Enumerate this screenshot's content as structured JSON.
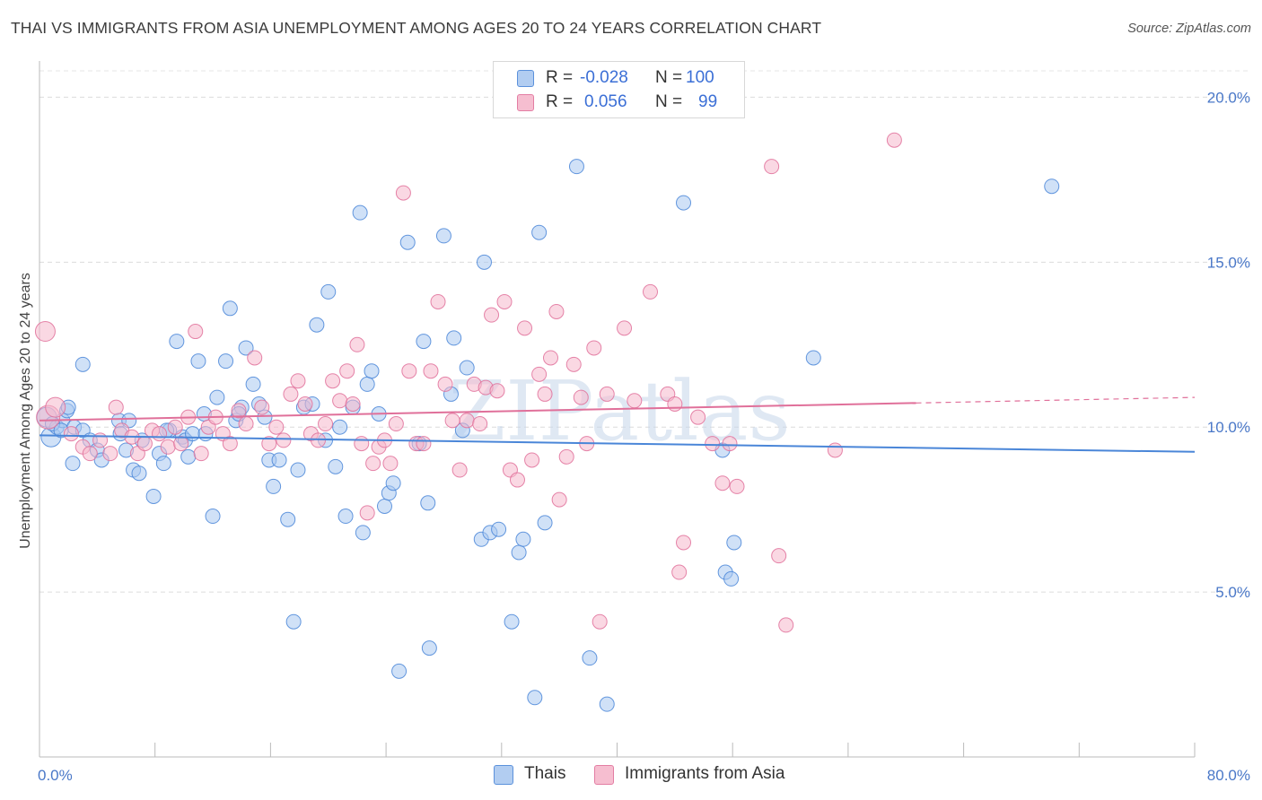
{
  "header": {
    "title": "THAI VS IMMIGRANTS FROM ASIA UNEMPLOYMENT AMONG AGES 20 TO 24 YEARS CORRELATION CHART",
    "source": "Source: ZipAtlas.com"
  },
  "watermark": "ZIPatlas",
  "legend": {
    "rows": [
      {
        "r_label": "R =",
        "r_value": "-0.028",
        "n_label": "N =",
        "n_value": "100",
        "color": "#aac8f0"
      },
      {
        "r_label": "R =",
        "r_value": "0.056",
        "n_label": "N =",
        "n_value": "99",
        "color": "#f6b8cc"
      }
    ],
    "bottom": [
      {
        "label": "Thais",
        "color": "#aac8f0"
      },
      {
        "label": "Immigrants from Asia",
        "color": "#f6b8cc"
      }
    ]
  },
  "chart_data": {
    "type": "scatter",
    "ylabel": "Unemployment Among Ages 20 to 24 years",
    "xlim": [
      0,
      80
    ],
    "ylim": [
      0,
      20.8
    ],
    "x_tick_labels": [
      "0.0%",
      "80.0%"
    ],
    "y_ticks": [
      {
        "value": 5,
        "label": "5.0%"
      },
      {
        "value": 10,
        "label": "10.0%"
      },
      {
        "value": 15,
        "label": "15.0%"
      },
      {
        "value": 20,
        "label": "20.0%"
      }
    ],
    "grid": true,
    "legend_placement": "top-center",
    "series": [
      {
        "name": "Thais",
        "color": "#4a86d8",
        "fill": "#aac8f0",
        "trend": {
          "x0": 0,
          "y0": 9.75,
          "x1": 80,
          "y1": 9.25,
          "dashed_from": null
        },
        "points": [
          [
            0.5,
            10.3,
            2
          ],
          [
            0.8,
            9.7,
            2
          ],
          [
            1.2,
            10.0,
            1
          ],
          [
            1.6,
            10.2,
            1
          ],
          [
            1.9,
            10.5,
            1
          ],
          [
            2.4,
            10.0,
            1
          ],
          [
            3.0,
            9.9,
            1
          ],
          [
            2.3,
            8.9,
            1
          ],
          [
            3.0,
            11.9,
            1
          ],
          [
            3.5,
            9.6,
            1
          ],
          [
            4.0,
            9.3,
            1
          ],
          [
            4.3,
            9.0,
            1
          ],
          [
            5.5,
            10.2,
            1
          ],
          [
            5.6,
            9.8,
            1
          ],
          [
            6.0,
            9.3,
            1
          ],
          [
            6.5,
            8.7,
            1
          ],
          [
            6.9,
            8.6,
            1
          ],
          [
            7.1,
            9.6,
            1
          ],
          [
            7.9,
            7.9,
            1
          ],
          [
            8.3,
            9.2,
            1
          ],
          [
            8.6,
            8.9,
            1
          ],
          [
            9.0,
            9.9,
            1
          ],
          [
            9.5,
            12.6,
            1
          ],
          [
            9.9,
            9.7,
            1
          ],
          [
            10.1,
            9.6,
            1
          ],
          [
            10.3,
            9.1,
            1
          ],
          [
            10.6,
            9.8,
            1
          ],
          [
            11.0,
            12.0,
            1
          ],
          [
            11.4,
            10.4,
            1
          ],
          [
            12.0,
            7.3,
            1
          ],
          [
            12.3,
            10.9,
            1
          ],
          [
            12.9,
            12.0,
            1
          ],
          [
            13.2,
            13.6,
            1
          ],
          [
            13.6,
            10.2,
            1
          ],
          [
            14.0,
            10.6,
            1
          ],
          [
            14.3,
            12.4,
            1
          ],
          [
            14.8,
            11.3,
            1
          ],
          [
            15.2,
            10.7,
            1
          ],
          [
            15.6,
            10.3,
            1
          ],
          [
            15.9,
            9.0,
            1
          ],
          [
            16.2,
            8.2,
            1
          ],
          [
            16.6,
            9.0,
            1
          ],
          [
            17.2,
            7.2,
            1
          ],
          [
            17.6,
            4.1,
            1
          ],
          [
            17.9,
            8.7,
            1
          ],
          [
            18.3,
            10.6,
            1
          ],
          [
            18.9,
            10.7,
            1
          ],
          [
            19.2,
            13.1,
            1
          ],
          [
            19.8,
            9.6,
            1
          ],
          [
            20.0,
            14.1,
            1
          ],
          [
            20.5,
            8.8,
            1
          ],
          [
            20.8,
            10.0,
            1
          ],
          [
            21.2,
            7.3,
            1
          ],
          [
            21.7,
            10.6,
            1
          ],
          [
            22.2,
            16.5,
            1
          ],
          [
            22.4,
            6.8,
            1
          ],
          [
            22.7,
            11.3,
            1
          ],
          [
            23.0,
            11.7,
            1
          ],
          [
            23.5,
            10.4,
            1
          ],
          [
            23.9,
            7.6,
            1
          ],
          [
            24.2,
            8.0,
            1
          ],
          [
            24.5,
            8.3,
            1
          ],
          [
            24.9,
            2.6,
            1
          ],
          [
            25.5,
            15.6,
            1
          ],
          [
            26.3,
            9.5,
            1
          ],
          [
            26.6,
            12.6,
            1
          ],
          [
            26.9,
            7.7,
            1
          ],
          [
            27.0,
            3.3,
            1
          ],
          [
            28.0,
            15.8,
            1
          ],
          [
            28.5,
            11.0,
            1
          ],
          [
            28.7,
            12.7,
            1
          ],
          [
            29.3,
            9.9,
            1
          ],
          [
            29.6,
            11.8,
            1
          ],
          [
            30.6,
            6.6,
            1
          ],
          [
            30.8,
            15.0,
            1
          ],
          [
            31.2,
            6.8,
            1
          ],
          [
            31.8,
            6.9,
            1
          ],
          [
            32.7,
            4.1,
            1
          ],
          [
            33.2,
            6.2,
            1
          ],
          [
            33.5,
            6.6,
            1
          ],
          [
            34.3,
            1.8,
            1
          ],
          [
            34.6,
            15.9,
            1
          ],
          [
            35.0,
            7.1,
            1
          ],
          [
            37.2,
            17.9,
            1
          ],
          [
            38.1,
            3.0,
            1
          ],
          [
            39.3,
            1.6,
            1
          ],
          [
            44.6,
            16.8,
            1
          ],
          [
            47.3,
            9.3,
            1
          ],
          [
            47.5,
            5.6,
            1
          ],
          [
            47.9,
            5.4,
            1
          ],
          [
            48.1,
            6.5,
            1
          ],
          [
            53.6,
            12.1,
            1
          ],
          [
            70.1,
            17.3,
            1
          ],
          [
            0.9,
            10.1,
            1
          ],
          [
            1.5,
            9.9,
            1
          ],
          [
            2.0,
            10.6,
            1
          ],
          [
            6.2,
            10.2,
            1
          ],
          [
            8.8,
            9.9,
            1
          ],
          [
            11.5,
            9.8,
            1
          ],
          [
            13.8,
            10.4,
            1
          ]
        ]
      },
      {
        "name": "Immigrants from Asia",
        "color": "#e0709a",
        "fill": "#f6b8cc",
        "trend": {
          "x0": 0,
          "y0": 10.2,
          "x1": 80,
          "y1": 10.9,
          "dashed_from": 60.7
        },
        "points": [
          [
            0.4,
            12.9,
            2
          ],
          [
            0.6,
            10.3,
            3
          ],
          [
            1.1,
            10.6,
            2
          ],
          [
            2.2,
            9.8,
            1
          ],
          [
            3.0,
            9.4,
            1
          ],
          [
            3.5,
            9.2,
            1
          ],
          [
            4.2,
            9.6,
            1
          ],
          [
            4.9,
            9.2,
            1
          ],
          [
            5.3,
            10.6,
            1
          ],
          [
            5.7,
            9.9,
            1
          ],
          [
            6.4,
            9.7,
            1
          ],
          [
            6.8,
            9.2,
            1
          ],
          [
            7.3,
            9.5,
            1
          ],
          [
            7.8,
            9.9,
            1
          ],
          [
            8.3,
            9.8,
            1
          ],
          [
            8.9,
            9.4,
            1
          ],
          [
            9.4,
            10.0,
            1
          ],
          [
            9.8,
            9.5,
            1
          ],
          [
            10.3,
            10.3,
            1
          ],
          [
            10.8,
            12.9,
            1
          ],
          [
            11.2,
            9.2,
            1
          ],
          [
            11.7,
            10.0,
            1
          ],
          [
            12.2,
            10.3,
            1
          ],
          [
            12.7,
            9.8,
            1
          ],
          [
            13.2,
            9.5,
            1
          ],
          [
            13.8,
            10.5,
            1
          ],
          [
            14.3,
            10.1,
            1
          ],
          [
            14.9,
            12.1,
            1
          ],
          [
            15.4,
            10.6,
            1
          ],
          [
            15.9,
            9.5,
            1
          ],
          [
            16.4,
            10.0,
            1
          ],
          [
            16.9,
            9.6,
            1
          ],
          [
            17.4,
            11.0,
            1
          ],
          [
            17.9,
            11.4,
            1
          ],
          [
            18.4,
            10.7,
            1
          ],
          [
            18.8,
            9.8,
            1
          ],
          [
            19.3,
            9.6,
            1
          ],
          [
            19.8,
            10.1,
            1
          ],
          [
            20.3,
            11.4,
            1
          ],
          [
            20.8,
            10.8,
            1
          ],
          [
            21.3,
            11.7,
            1
          ],
          [
            21.7,
            10.7,
            1
          ],
          [
            22.0,
            12.5,
            1
          ],
          [
            22.3,
            9.5,
            1
          ],
          [
            22.7,
            7.4,
            1
          ],
          [
            23.1,
            8.9,
            1
          ],
          [
            23.5,
            9.4,
            1
          ],
          [
            23.9,
            9.6,
            1
          ],
          [
            24.3,
            8.9,
            1
          ],
          [
            24.7,
            10.1,
            1
          ],
          [
            25.2,
            17.1,
            1
          ],
          [
            25.6,
            11.7,
            1
          ],
          [
            26.1,
            9.5,
            1
          ],
          [
            26.6,
            9.5,
            1
          ],
          [
            27.1,
            11.7,
            1
          ],
          [
            27.6,
            13.8,
            1
          ],
          [
            28.1,
            11.3,
            1
          ],
          [
            28.6,
            10.2,
            1
          ],
          [
            29.1,
            8.7,
            1
          ],
          [
            29.6,
            10.2,
            1
          ],
          [
            30.1,
            11.3,
            1
          ],
          [
            30.5,
            10.1,
            1
          ],
          [
            30.9,
            11.2,
            1
          ],
          [
            31.3,
            13.4,
            1
          ],
          [
            31.7,
            11.1,
            1
          ],
          [
            32.2,
            13.8,
            1
          ],
          [
            32.6,
            8.7,
            1
          ],
          [
            33.1,
            8.4,
            1
          ],
          [
            33.6,
            13.0,
            1
          ],
          [
            34.1,
            9.0,
            1
          ],
          [
            34.6,
            11.6,
            1
          ],
          [
            35.0,
            11.0,
            1
          ],
          [
            35.4,
            12.1,
            1
          ],
          [
            35.8,
            13.5,
            1
          ],
          [
            36.0,
            7.8,
            1
          ],
          [
            36.5,
            9.1,
            1
          ],
          [
            37.0,
            11.9,
            1
          ],
          [
            37.5,
            10.9,
            1
          ],
          [
            37.9,
            9.5,
            1
          ],
          [
            38.4,
            12.4,
            1
          ],
          [
            38.8,
            4.1,
            1
          ],
          [
            39.3,
            11.0,
            1
          ],
          [
            40.5,
            13.0,
            1
          ],
          [
            41.2,
            10.8,
            1
          ],
          [
            42.3,
            14.1,
            1
          ],
          [
            43.5,
            11.0,
            1
          ],
          [
            44.0,
            10.7,
            1
          ],
          [
            44.3,
            5.6,
            1
          ],
          [
            44.6,
            6.5,
            1
          ],
          [
            45.6,
            10.3,
            1
          ],
          [
            46.6,
            9.5,
            1
          ],
          [
            47.3,
            8.3,
            1
          ],
          [
            47.8,
            9.5,
            1
          ],
          [
            48.3,
            8.2,
            1
          ],
          [
            50.7,
            17.9,
            1
          ],
          [
            51.2,
            6.1,
            1
          ],
          [
            51.7,
            4.0,
            1
          ],
          [
            55.1,
            9.3,
            1
          ],
          [
            59.2,
            18.7,
            1
          ]
        ]
      }
    ]
  }
}
